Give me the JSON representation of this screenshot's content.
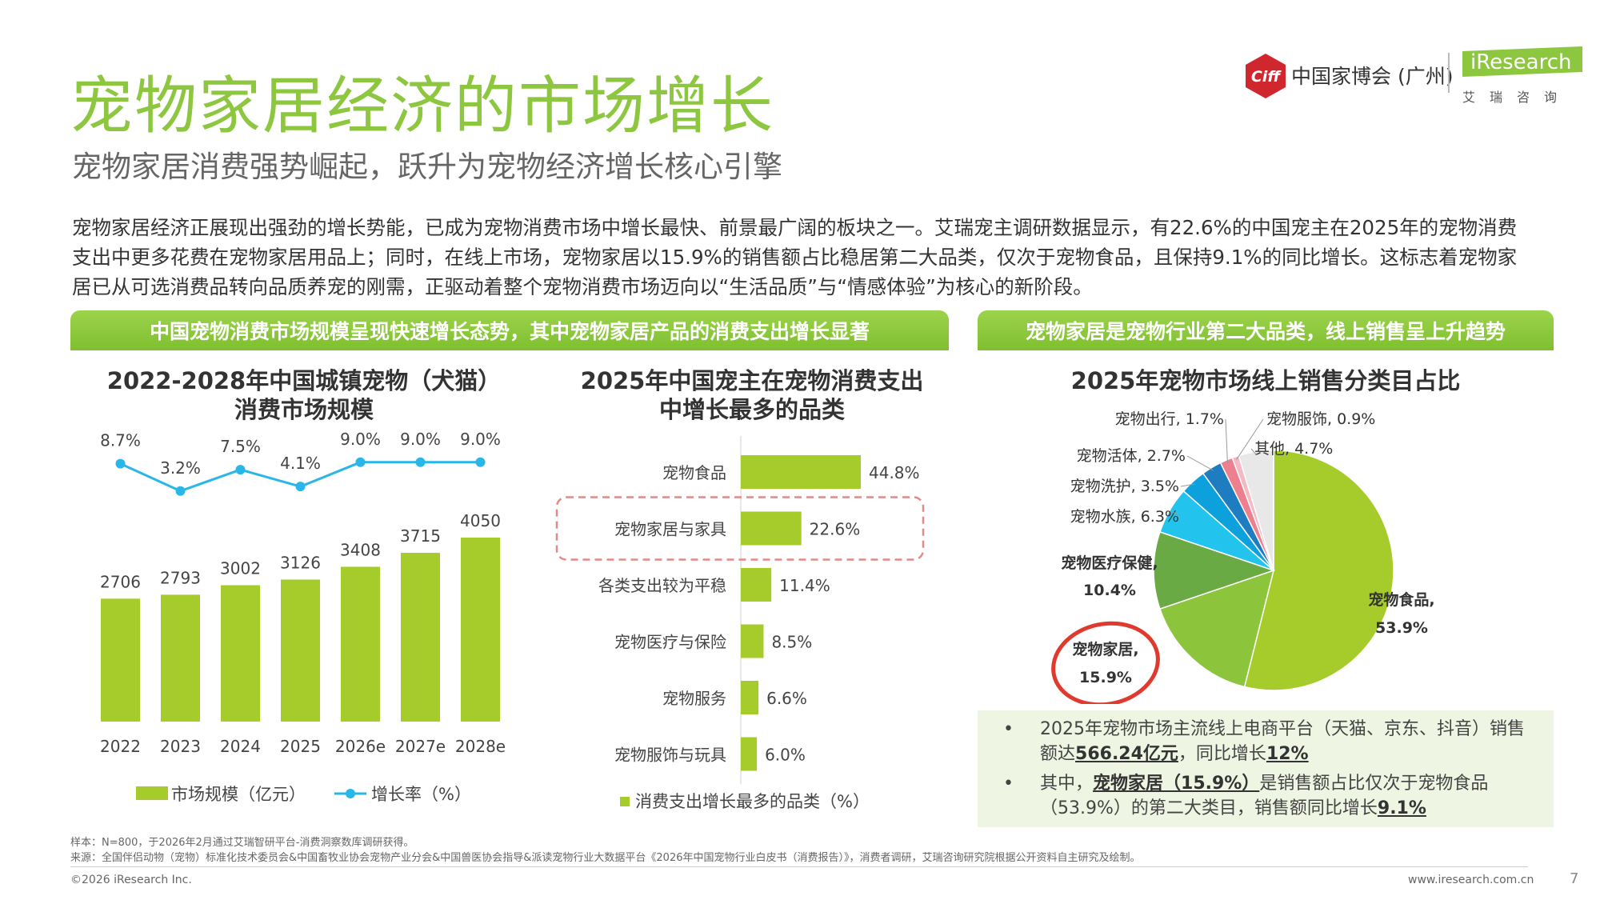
{
  "header": {
    "title": "宠物家居经济的市场增长",
    "subtitle": "宠物家居消费强势崛起，跃升为宠物经济增长核心引擎",
    "paragraph": "宠物家居经济正展现出强劲的增长势能，已成为宠物消费市场中增长最快、前景最广阔的板块之一。艾瑞宠主调研数据显示，有22.6%的中国宠主在2025年的宠物消费支出中更多花费在宠物家居用品上；同时，在线上市场，宠物家居以15.9%的销售额占比稳居第二大品类，仅次于宠物食品，且保持9.1%的同比增长。这标志着宠物家居已从可选消费品转向品质养宠的刚需，正驱动着整个宠物消费市场迈向以“生活品质”与“情感体验”为核心的新阶段。"
  },
  "logos": {
    "ciff_mark": "Ciff",
    "ciff_text": "中国家博会 (广州)",
    "iresearch_mark": "iResearch",
    "iresearch_cn": "艾瑞咨询"
  },
  "banners": {
    "left": "中国宠物消费市场规模呈现快速增长态势，其中宠物家居产品的消费支出增长显著",
    "right": "宠物家居是宠物行业第二大品类，线上销售呈上升趋势"
  },
  "colors": {
    "brand_green": "#8dc63f",
    "bar_green": "#a6cc2b",
    "line_blue": "#29b6e8",
    "highlight_red": "#e03a2f",
    "dashed_red": "#e08a8a"
  },
  "chart_data": [
    {
      "type": "bar",
      "title": "2022-2028年中国城镇宠物（犬猫）消费市场规模",
      "title_lines": [
        "2022-2028年中国城镇宠物（犬猫）",
        "消费市场规模"
      ],
      "categories": [
        "2022",
        "2023",
        "2024",
        "2025",
        "2026e",
        "2027e",
        "2028e"
      ],
      "series": [
        {
          "name": "市场规模（亿元）",
          "type": "bar",
          "values": [
            2706,
            2793,
            3002,
            3126,
            3408,
            3715,
            4050
          ]
        },
        {
          "name": "增长率（%）",
          "type": "line",
          "values": [
            8.7,
            3.2,
            7.5,
            4.1,
            9.0,
            9.0,
            9.0
          ],
          "labels": [
            "8.7%",
            "3.2%",
            "7.5%",
            "4.1%",
            "9.0%",
            "9.0%",
            "9.0%"
          ]
        }
      ],
      "legend": "bottom"
    },
    {
      "type": "bar",
      "orientation": "horizontal",
      "title": "2025年中国宠主在宠物消费支出中增长最多的品类",
      "title_lines": [
        "2025年中国宠主在宠物消费支出",
        "中增长最多的品类"
      ],
      "categories": [
        "宠物食品",
        "宠物家居与家具",
        "各类支出较为平稳",
        "宠物医疗与保险",
        "宠物服务",
        "宠物服饰与玩具"
      ],
      "values": [
        44.8,
        22.6,
        11.4,
        8.5,
        6.6,
        6.0
      ],
      "labels": [
        "44.8%",
        "22.6%",
        "11.4%",
        "8.5%",
        "6.6%",
        "6.0%"
      ],
      "legend_label": "消费支出增长最多的品类（%）",
      "highlight": "宠物家居与家具"
    },
    {
      "type": "pie",
      "title": "2025年宠物市场线上销售分类目占比",
      "slices": [
        {
          "name": "宠物食品",
          "value": 53.9,
          "label": "宠物食品,",
          "pct": "53.9%",
          "color": "#a6cc2b"
        },
        {
          "name": "宠物家居",
          "value": 15.9,
          "label": "宠物家居,",
          "pct": "15.9%",
          "color": "#8cc43c"
        },
        {
          "name": "宠物医疗保健",
          "value": 10.4,
          "label": "宠物医疗保健,",
          "pct": "10.4%",
          "color": "#6aaa44"
        },
        {
          "name": "宠物水族",
          "value": 6.3,
          "label": "宠物水族, 6.3%",
          "color": "#22c4ee"
        },
        {
          "name": "宠物洗护",
          "value": 3.5,
          "label": "宠物洗护, 3.5%",
          "color": "#0ca0dd"
        },
        {
          "name": "宠物活体",
          "value": 2.7,
          "label": "宠物活体, 2.7%",
          "color": "#1e7cc0"
        },
        {
          "name": "宠物出行",
          "value": 1.7,
          "label": "宠物出行, 1.7%",
          "color": "#ee7f8e"
        },
        {
          "name": "宠物服饰",
          "value": 0.9,
          "label": "宠物服饰, 0.9%",
          "color": "#f4b9c2"
        },
        {
          "name": "其他",
          "value": 4.7,
          "label": "其他, 4.7%",
          "color": "#e8e8e8"
        }
      ],
      "highlight": "宠物家居"
    }
  ],
  "notes": [
    {
      "bullet": "•",
      "parts": [
        "2025年宠物市场主流线上电商平台（天猫、京东、抖音）销售额达",
        "566.24亿元",
        "，同比增长",
        "12%"
      ]
    },
    {
      "bullet": "•",
      "parts": [
        "其中，",
        "宠物家居（15.9%）",
        "是销售额占比仅次于宠物食品（53.9%）的第二大类目，销售额同比增长",
        "9.1%"
      ]
    }
  ],
  "footer": {
    "sample": "样本：N=800，于2026年2月通过艾瑞智研平台-消费洞察数库调研获得。",
    "source": "来源：全国伴侣动物（宠物）标准化技术委员会&中国畜牧业协会宠物产业分会&中国兽医协会指导&派读宠物行业大数据平台《2026年中国宠物行业白皮书（消费报告）》，消费者调研，艾瑞咨询研究院根据公开资料自主研究及绘制。",
    "copyright": "©2026 iResearch Inc.",
    "url": "www.iresearch.com.cn",
    "page": "7"
  }
}
